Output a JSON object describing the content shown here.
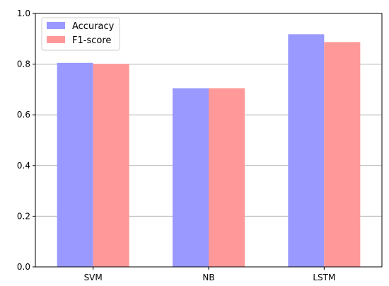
{
  "chart_data": {
    "type": "bar",
    "categories": [
      "SVM",
      "NB",
      "LSTM"
    ],
    "series": [
      {
        "name": "Accuracy",
        "values": [
          0.805,
          0.705,
          0.918
        ],
        "color": "#9999ff"
      },
      {
        "name": "F1-score",
        "values": [
          0.801,
          0.705,
          0.887
        ],
        "color": "#ff9999"
      }
    ],
    "title": "",
    "xlabel": "",
    "ylabel": "",
    "ylim": [
      0,
      1.0
    ],
    "yticks": [
      "0.0",
      "0.2",
      "0.4",
      "0.6",
      "0.8",
      "1.0"
    ],
    "grid": "horizontal",
    "grid_color": "#b0b0b0",
    "legend_placement": "top-left"
  }
}
